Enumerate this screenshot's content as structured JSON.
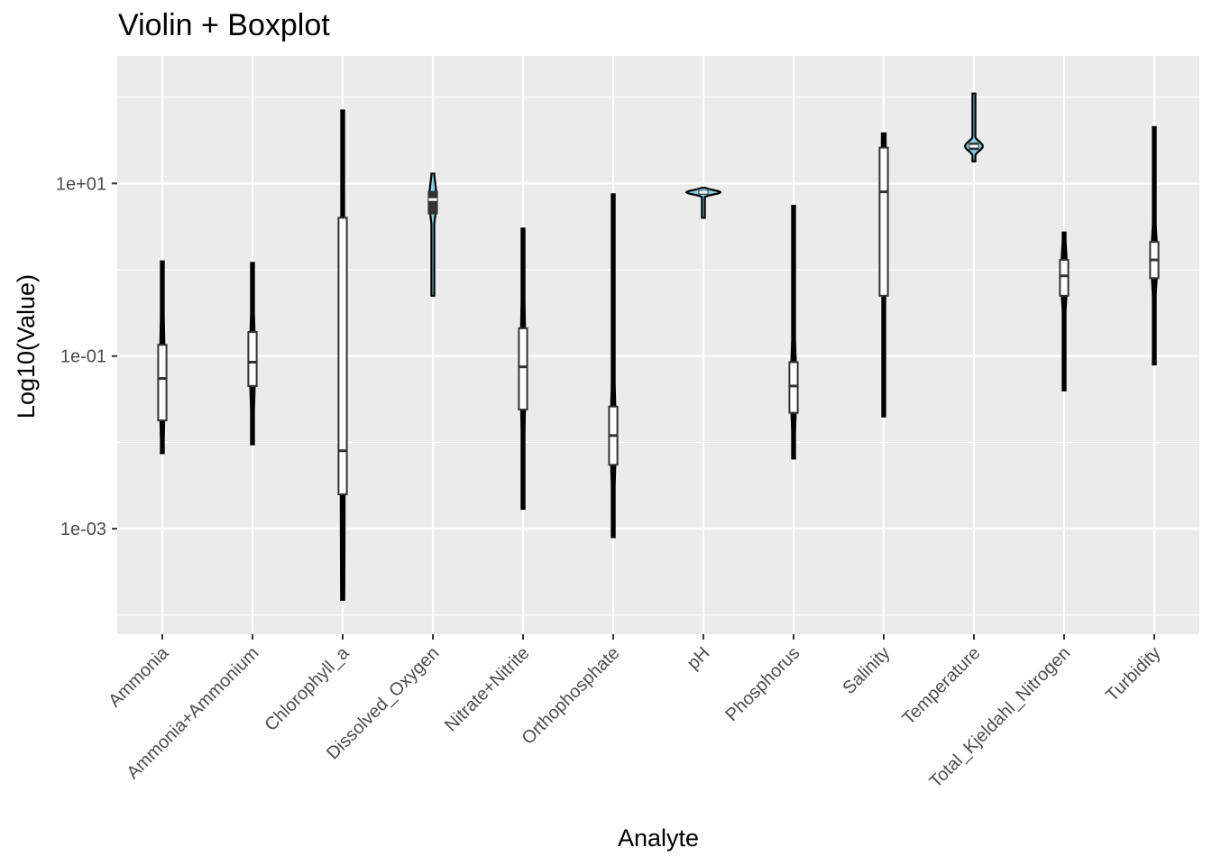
{
  "chart_data": {
    "type": "violin",
    "title": "Violin + Boxplot",
    "xlabel": "Analyte",
    "ylabel": "Log10(Value)",
    "y_scale": "log10",
    "ylim": [
      6e-05,
      300
    ],
    "y_ticks": [
      {
        "value": 10,
        "label": "1e+01"
      },
      {
        "value": 0.1,
        "label": "1e-01"
      },
      {
        "value": 0.001,
        "label": "1e-03"
      }
    ],
    "grid": true,
    "background": "#ebebeb",
    "colors": {
      "default_violin": "#000000",
      "highlight_violin": "#87ceeb",
      "box_fill": "#ffffff",
      "box_line": "#333333"
    },
    "categories": [
      "Ammonia",
      "Ammonia+Ammonium",
      "Chlorophyll_a",
      "Dissolved_Oxygen",
      "Nitrate+Nitrite",
      "Orthophosphate",
      "pH",
      "Phosphorus",
      "Salinity",
      "Temperature",
      "Total_Kjeldahl_Nitrogen",
      "Turbidity"
    ],
    "series": [
      {
        "category": "Ammonia",
        "fill": "#000000",
        "min": 0.0075,
        "q1": 0.018,
        "median": 0.055,
        "q3": 0.135,
        "max": 1.25
      },
      {
        "category": "Ammonia+Ammonium",
        "fill": "#000000",
        "min": 0.0095,
        "q1": 0.045,
        "median": 0.085,
        "q3": 0.19,
        "max": 1.2
      },
      {
        "category": "Chlorophyll_a",
        "fill": "#000000",
        "min": 0.00015,
        "q1": 0.0025,
        "median": 0.008,
        "q3": 4,
        "max": 70
      },
      {
        "category": "Dissolved_Oxygen",
        "fill": "#87ceeb",
        "min": 0.5,
        "q1": 4.5,
        "median": 6.5,
        "q3": 8,
        "max": 13
      },
      {
        "category": "Nitrate+Nitrite",
        "fill": "#000000",
        "min": 0.0017,
        "q1": 0.024,
        "median": 0.075,
        "q3": 0.21,
        "max": 3
      },
      {
        "category": "Orthophosphate",
        "fill": "#000000",
        "min": 0.0008,
        "q1": 0.0055,
        "median": 0.012,
        "q3": 0.026,
        "max": 7.5
      },
      {
        "category": "pH",
        "fill": "#87ceeb",
        "min": 4,
        "q1": 7.6,
        "median": 7.9,
        "q3": 8.1,
        "max": 8.9
      },
      {
        "category": "Phosphorus",
        "fill": "#000000",
        "min": 0.0065,
        "q1": 0.022,
        "median": 0.045,
        "q3": 0.085,
        "max": 5.5
      },
      {
        "category": "Salinity",
        "fill": "#000000",
        "min": 0.02,
        "q1": 0.5,
        "median": 8,
        "q3": 26,
        "max": 38
      },
      {
        "category": "Temperature",
        "fill": "#87ceeb",
        "min": 18,
        "q1": 25,
        "median": 27,
        "q3": 29,
        "max": 110
      },
      {
        "category": "Total_Kjeldahl_Nitrogen",
        "fill": "#000000",
        "min": 0.04,
        "q1": 0.5,
        "median": 0.85,
        "q3": 1.3,
        "max": 2.7
      },
      {
        "category": "Turbidity",
        "fill": "#000000",
        "min": 0.08,
        "q1": 0.8,
        "median": 1.3,
        "q3": 2.1,
        "max": 45
      }
    ]
  }
}
